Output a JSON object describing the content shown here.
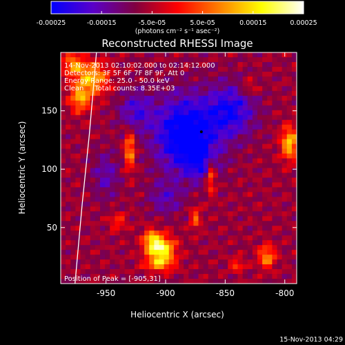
{
  "chart_data": {
    "type": "heatmap",
    "title": "Reconstructed RHESSI Image",
    "xlabel": "Heliocentric X (arcsec)",
    "ylabel": "Heliocentric Y (arcsec)",
    "xlim": [
      -988,
      -790
    ],
    "ylim": [
      2,
      200
    ],
    "x_ticks": [
      -950,
      -900,
      -850,
      -800
    ],
    "x_tick_labels": [
      "-950",
      "-900",
      "-850",
      "-800"
    ],
    "y_ticks": [
      50,
      100,
      150
    ],
    "y_tick_labels": [
      "50",
      "100",
      "150"
    ],
    "colorbar": {
      "min": -0.00025,
      "max": 0.00025,
      "tick_values": [
        -0.00025,
        -0.00015,
        -5e-05,
        5e-05,
        0.00015,
        0.00025
      ],
      "tick_labels": [
        "-0.00025",
        "-0.00015",
        "-5.0e-05",
        "5.0e-05",
        "0.00015",
        "0.00025"
      ],
      "unit_label": "(photons cm⁻² s⁻¹ asec⁻²)",
      "colors": [
        "#0000ff",
        "#5a00c8",
        "#800040",
        "#ff0000",
        "#ff8000",
        "#ffff00",
        "#ffffff"
      ]
    },
    "annotations": [
      "14-Nov-2013 02:10:02.000 to 02:14:12.000",
      "Detectors: 3F 5F 6F 7F 8F 9F, Att 0",
      "Energy Range: 25.0 - 50.0 keV",
      "Clean     Total counts: 8.35E+03",
      "Position of Peak = [-905,31]"
    ],
    "peak_position": [
      -905,
      31
    ],
    "limb_curve": [
      [
        -976,
        2
      ],
      [
        -970,
        70
      ],
      [
        -964,
        130
      ],
      [
        -958,
        200
      ]
    ],
    "center_marker": [
      -870,
      132
    ],
    "sources": [
      {
        "x": -904,
        "y": 31,
        "sx": 8,
        "sy": 8,
        "amp": 1.0
      },
      {
        "x": -912,
        "y": 40,
        "sx": 5,
        "sy": 6,
        "amp": 0.55
      },
      {
        "x": -905,
        "y": 18,
        "sx": 9,
        "sy": 4,
        "amp": 0.45
      },
      {
        "x": -962,
        "y": 178,
        "sx": 10,
        "sy": 10,
        "amp": 0.7
      },
      {
        "x": -972,
        "y": 160,
        "sx": 6,
        "sy": 8,
        "amp": 0.6
      },
      {
        "x": -978,
        "y": 190,
        "sx": 6,
        "sy": 6,
        "amp": 0.55
      },
      {
        "x": -796,
        "y": 122,
        "sx": 5,
        "sy": 10,
        "amp": 0.75
      },
      {
        "x": -930,
        "y": 116,
        "sx": 3,
        "sy": 12,
        "amp": 0.65
      },
      {
        "x": -862,
        "y": 95,
        "sx": 3,
        "sy": 11,
        "amp": 0.6
      },
      {
        "x": -875,
        "y": 58,
        "sx": 3,
        "sy": 7,
        "amp": 0.45
      },
      {
        "x": -815,
        "y": 25,
        "sx": 5,
        "sy": 7,
        "amp": 0.6
      },
      {
        "x": -840,
        "y": 18,
        "sx": 4,
        "sy": 4,
        "amp": 0.4
      },
      {
        "x": -940,
        "y": 55,
        "sx": 5,
        "sy": 5,
        "amp": 0.35
      },
      {
        "x": -830,
        "y": 170,
        "sx": 5,
        "sy": 5,
        "amp": 0.3
      },
      {
        "x": -883,
        "y": 130,
        "sx": 18,
        "sy": 22,
        "amp": -0.85
      },
      {
        "x": -845,
        "y": 150,
        "sx": 14,
        "sy": 16,
        "amp": -0.55
      },
      {
        "x": -925,
        "y": 150,
        "sx": 10,
        "sy": 12,
        "amp": -0.4
      },
      {
        "x": -870,
        "y": 105,
        "sx": 10,
        "sy": 10,
        "amp": -0.35
      },
      {
        "x": -900,
        "y": 75,
        "sx": 10,
        "sy": 10,
        "amp": -0.3
      },
      {
        "x": -950,
        "y": 95,
        "sx": 8,
        "sy": 14,
        "amp": -0.3
      }
    ]
  },
  "footer": {
    "timestamp": "15-Nov-2013 04:29"
  }
}
